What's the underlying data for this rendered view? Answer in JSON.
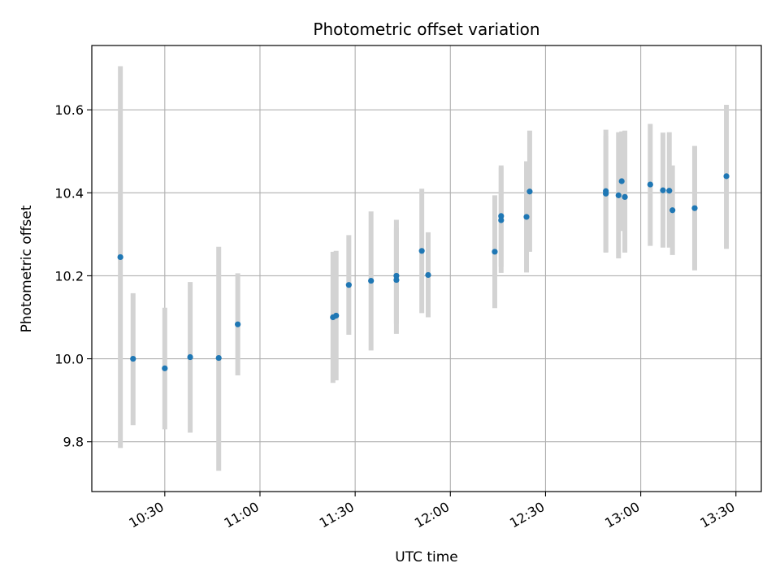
{
  "chart_data": {
    "type": "scatter",
    "title": "Photometric offset variation",
    "xlabel": "UTC time",
    "ylabel": "Photometric offset",
    "x_axis_type": "time",
    "xlim": [
      "10:07",
      "13:38"
    ],
    "ylim": [
      9.68,
      10.755
    ],
    "grid": true,
    "legend": "none",
    "colors": {
      "point": "#1f77b4",
      "errorbar": "#d3d3d3",
      "grid": "#b0b0b0"
    },
    "x_ticks": [
      "10:30",
      "11:00",
      "11:30",
      "12:00",
      "12:30",
      "13:00",
      "13:30"
    ],
    "y_ticks": [
      "9.8",
      "10.0",
      "10.2",
      "10.4",
      "10.6"
    ],
    "points": [
      {
        "t": "10:16",
        "y": 10.245,
        "lo": 9.785,
        "hi": 10.705
      },
      {
        "t": "10:20",
        "y": 10.0,
        "lo": 9.84,
        "hi": 10.158
      },
      {
        "t": "10:30",
        "y": 9.977,
        "lo": 9.83,
        "hi": 10.123
      },
      {
        "t": "10:38",
        "y": 10.004,
        "lo": 9.822,
        "hi": 10.185
      },
      {
        "t": "10:47",
        "y": 10.002,
        "lo": 9.73,
        "hi": 10.27
      },
      {
        "t": "10:53",
        "y": 10.083,
        "lo": 9.96,
        "hi": 10.206
      },
      {
        "t": "11:23",
        "y": 10.1,
        "lo": 9.942,
        "hi": 10.258
      },
      {
        "t": "11:24",
        "y": 10.104,
        "lo": 9.948,
        "hi": 10.26
      },
      {
        "t": "11:28",
        "y": 10.178,
        "lo": 10.058,
        "hi": 10.298
      },
      {
        "t": "11:35",
        "y": 10.188,
        "lo": 10.02,
        "hi": 10.355
      },
      {
        "t": "11:43",
        "y": 10.2,
        "lo": 10.084,
        "hi": 10.316
      },
      {
        "t": "11:43",
        "y": 10.19,
        "lo": 10.06,
        "hi": 10.335
      },
      {
        "t": "11:51",
        "y": 10.26,
        "lo": 10.11,
        "hi": 10.41
      },
      {
        "t": "11:53",
        "y": 10.202,
        "lo": 10.1,
        "hi": 10.305
      },
      {
        "t": "12:14",
        "y": 10.258,
        "lo": 10.122,
        "hi": 10.394
      },
      {
        "t": "12:16",
        "y": 10.344,
        "lo": 10.222,
        "hi": 10.466
      },
      {
        "t": "12:16",
        "y": 10.334,
        "lo": 10.207,
        "hi": 10.461
      },
      {
        "t": "12:24",
        "y": 10.342,
        "lo": 10.208,
        "hi": 10.476
      },
      {
        "t": "12:25",
        "y": 10.403,
        "lo": 10.258,
        "hi": 10.55
      },
      {
        "t": "12:49",
        "y": 10.398,
        "lo": 10.258,
        "hi": 10.538
      },
      {
        "t": "12:49",
        "y": 10.404,
        "lo": 10.256,
        "hi": 10.552
      },
      {
        "t": "12:53",
        "y": 10.394,
        "lo": 10.242,
        "hi": 10.546
      },
      {
        "t": "12:54",
        "y": 10.428,
        "lo": 10.308,
        "hi": 10.548
      },
      {
        "t": "12:55",
        "y": 10.39,
        "lo": 10.256,
        "hi": 10.55
      },
      {
        "t": "13:03",
        "y": 10.42,
        "lo": 10.272,
        "hi": 10.566
      },
      {
        "t": "13:07",
        "y": 10.406,
        "lo": 10.268,
        "hi": 10.545
      },
      {
        "t": "13:09",
        "y": 10.405,
        "lo": 10.268,
        "hi": 10.546
      },
      {
        "t": "13:10",
        "y": 10.358,
        "lo": 10.25,
        "hi": 10.466
      },
      {
        "t": "13:17",
        "y": 10.363,
        "lo": 10.213,
        "hi": 10.513
      },
      {
        "t": "13:27",
        "y": 10.44,
        "lo": 10.265,
        "hi": 10.612
      }
    ]
  }
}
